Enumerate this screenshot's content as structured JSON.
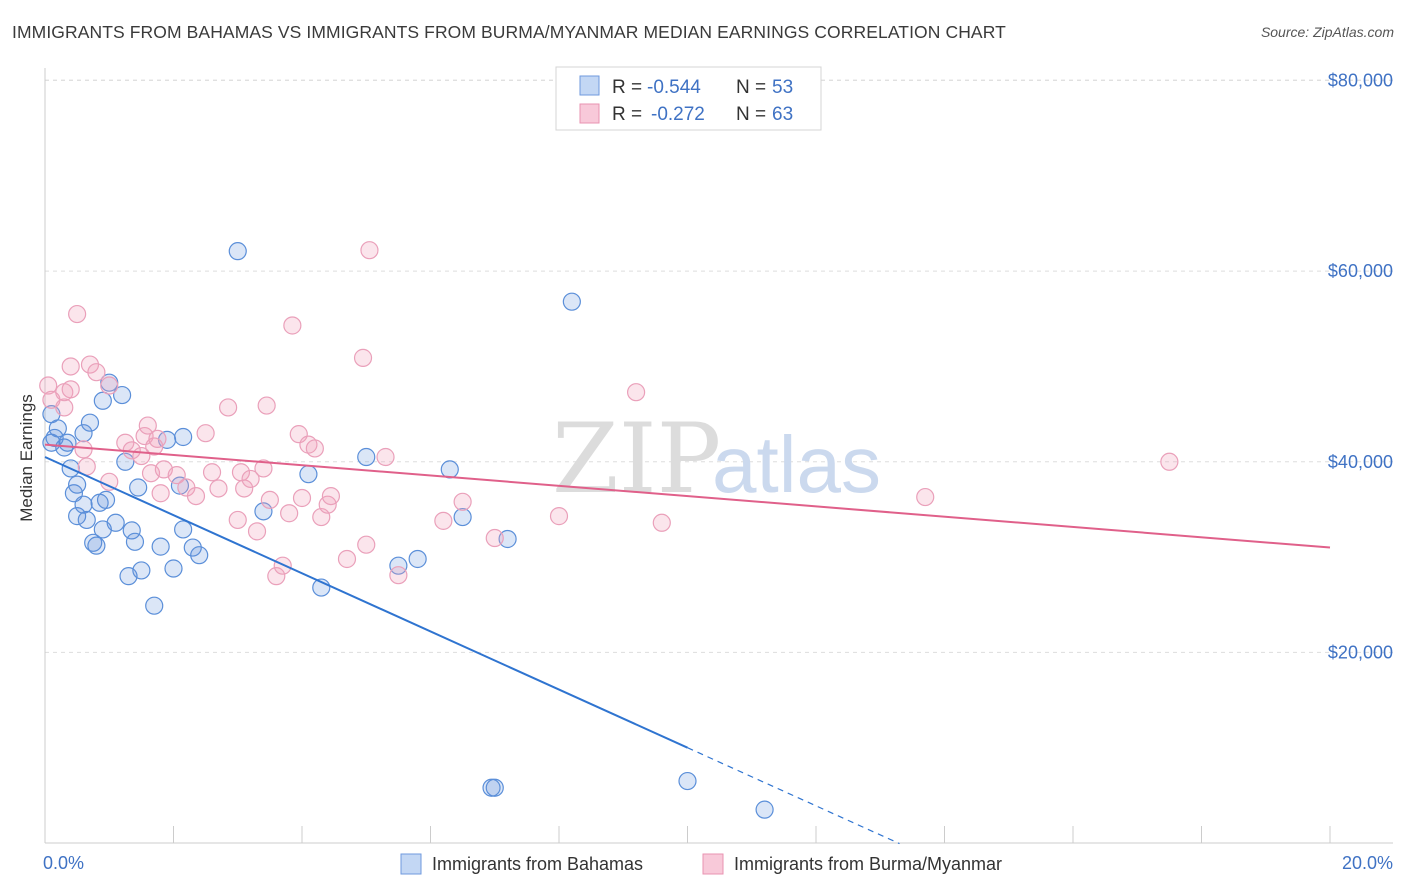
{
  "title": "IMMIGRANTS FROM BAHAMAS VS IMMIGRANTS FROM BURMA/MYANMAR MEDIAN EARNINGS CORRELATION CHART",
  "source": "Source: ZipAtlas.com",
  "watermark": {
    "zip": "ZIP",
    "atlas": "atlas"
  },
  "chart_data": {
    "type": "scatter",
    "ylabel": "Median Earnings",
    "x_tick_labels": [
      "0.0%",
      "20.0%"
    ],
    "y_tick_labels": [
      "$80,000",
      "$60,000",
      "$40,000",
      "$20,000"
    ],
    "y_ticks": [
      80000,
      60000,
      40000,
      20000
    ],
    "xlim": [
      0,
      20
    ],
    "ylim": [
      0,
      82000
    ],
    "grid": true,
    "legend_position": "top-center",
    "series": [
      {
        "name": "Immigrants from Bahamas",
        "color": "#5b8fd9",
        "line_color": "#2f74d0",
        "R": "-0.544",
        "N": "53",
        "trend": {
          "x0": 0.0,
          "y0": 40500,
          "x1": 10.0,
          "y1": 10000,
          "dashed_to_x": 13.3
        },
        "points": [
          [
            0.1,
            42000
          ],
          [
            0.1,
            45000
          ],
          [
            0.15,
            42500
          ],
          [
            0.2,
            43500
          ],
          [
            0.3,
            41500
          ],
          [
            0.35,
            42000
          ],
          [
            0.4,
            39300
          ],
          [
            0.45,
            36700
          ],
          [
            0.5,
            37600
          ],
          [
            0.5,
            34300
          ],
          [
            0.6,
            35500
          ],
          [
            0.6,
            43000
          ],
          [
            0.65,
            33900
          ],
          [
            0.7,
            44100
          ],
          [
            0.75,
            31500
          ],
          [
            0.8,
            31200
          ],
          [
            0.85,
            35700
          ],
          [
            0.9,
            32900
          ],
          [
            0.95,
            36000
          ],
          [
            0.9,
            46400
          ],
          [
            1.0,
            48300
          ],
          [
            1.1,
            33600
          ],
          [
            1.2,
            47000
          ],
          [
            1.25,
            40000
          ],
          [
            1.3,
            28000
          ],
          [
            1.35,
            32800
          ],
          [
            1.4,
            31600
          ],
          [
            1.45,
            37300
          ],
          [
            1.5,
            28600
          ],
          [
            1.7,
            24900
          ],
          [
            1.8,
            31100
          ],
          [
            1.9,
            42300
          ],
          [
            2.0,
            28800
          ],
          [
            2.1,
            37500
          ],
          [
            2.3,
            31000
          ],
          [
            2.4,
            30200
          ],
          [
            2.15,
            42600
          ],
          [
            2.15,
            32900
          ],
          [
            3.0,
            62100
          ],
          [
            3.4,
            34800
          ],
          [
            4.1,
            38700
          ],
          [
            4.3,
            26800
          ],
          [
            5.0,
            40500
          ],
          [
            5.5,
            29100
          ],
          [
            5.8,
            29800
          ],
          [
            6.3,
            39200
          ],
          [
            6.5,
            34200
          ],
          [
            7.2,
            31900
          ],
          [
            8.2,
            56800
          ],
          [
            7.0,
            5800
          ],
          [
            6.95,
            5800
          ],
          [
            10.0,
            6500
          ],
          [
            11.2,
            3500
          ]
        ]
      },
      {
        "name": "Immigrants from Burma/Myanmar",
        "color": "#f0a0bb",
        "line_color": "#e0608a",
        "R": "-0.272",
        "N": "63",
        "trend": {
          "x0": 0.0,
          "y0": 41800,
          "x1": 20.0,
          "y1": 31000
        },
        "points": [
          [
            0.05,
            48000
          ],
          [
            0.1,
            46500
          ],
          [
            0.3,
            45700
          ],
          [
            0.3,
            47300
          ],
          [
            0.4,
            50000
          ],
          [
            0.4,
            47600
          ],
          [
            0.5,
            55500
          ],
          [
            0.6,
            41300
          ],
          [
            0.65,
            39500
          ],
          [
            0.7,
            50200
          ],
          [
            0.8,
            49400
          ],
          [
            1.0,
            48000
          ],
          [
            1.0,
            37900
          ],
          [
            1.25,
            42000
          ],
          [
            1.35,
            41200
          ],
          [
            1.5,
            40600
          ],
          [
            1.55,
            42700
          ],
          [
            1.6,
            43800
          ],
          [
            1.65,
            38800
          ],
          [
            1.7,
            41600
          ],
          [
            1.75,
            42400
          ],
          [
            1.8,
            36700
          ],
          [
            1.85,
            39200
          ],
          [
            2.05,
            38600
          ],
          [
            2.2,
            37300
          ],
          [
            2.35,
            36400
          ],
          [
            2.5,
            43000
          ],
          [
            2.6,
            38900
          ],
          [
            2.7,
            37200
          ],
          [
            2.85,
            45700
          ],
          [
            3.0,
            33900
          ],
          [
            3.05,
            38900
          ],
          [
            3.1,
            37200
          ],
          [
            3.2,
            38200
          ],
          [
            3.3,
            32700
          ],
          [
            3.4,
            39300
          ],
          [
            3.45,
            45900
          ],
          [
            3.5,
            36000
          ],
          [
            3.6,
            28000
          ],
          [
            3.7,
            29100
          ],
          [
            3.8,
            34600
          ],
          [
            3.85,
            54300
          ],
          [
            3.95,
            42900
          ],
          [
            4.0,
            36200
          ],
          [
            4.1,
            41800
          ],
          [
            4.2,
            41400
          ],
          [
            4.3,
            34200
          ],
          [
            4.4,
            35500
          ],
          [
            4.45,
            36400
          ],
          [
            4.7,
            29800
          ],
          [
            4.95,
            50900
          ],
          [
            5.0,
            31300
          ],
          [
            5.05,
            62200
          ],
          [
            5.3,
            40500
          ],
          [
            5.5,
            28100
          ],
          [
            6.2,
            33800
          ],
          [
            6.5,
            35800
          ],
          [
            7.0,
            32000
          ],
          [
            8.0,
            34300
          ],
          [
            9.2,
            47300
          ],
          [
            9.6,
            33600
          ],
          [
            13.7,
            36300
          ],
          [
            17.5,
            40000
          ]
        ]
      }
    ]
  }
}
